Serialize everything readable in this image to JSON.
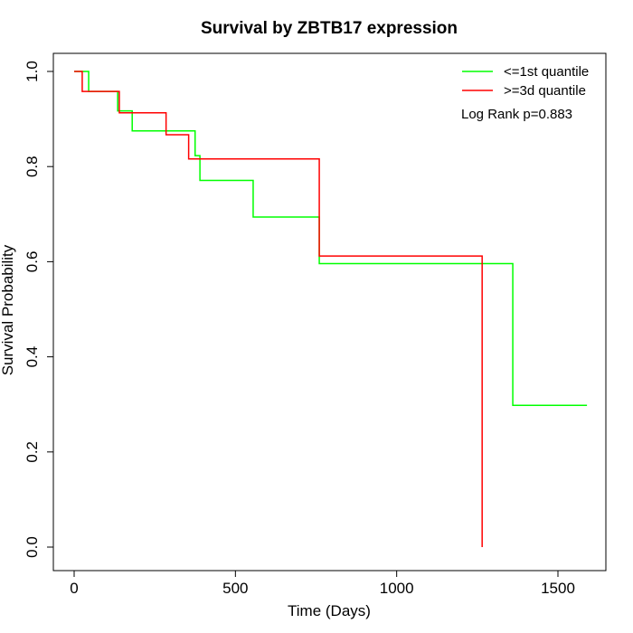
{
  "chart_data": {
    "type": "line",
    "title": "Survival by ZBTB17 expression",
    "xlabel": "Time (Days)",
    "ylabel": "Survival Probability",
    "xlim": [
      0,
      1650
    ],
    "ylim": [
      0,
      1
    ],
    "x_ticks": [
      0,
      500,
      1000,
      1500
    ],
    "y_ticks": [
      0.0,
      0.2,
      0.4,
      0.6,
      0.8,
      1.0
    ],
    "x_tick_labels": [
      "0",
      "500",
      "1000",
      "1500"
    ],
    "y_tick_labels": [
      "0.0",
      "0.2",
      "0.4",
      "0.6",
      "0.8",
      "1.0"
    ],
    "legend_position": "top-right",
    "annotation": "Log Rank p=0.883",
    "series": [
      {
        "name": "<=1st quantile",
        "color": "#00ff00",
        "step": true,
        "points": [
          [
            0,
            1.0
          ],
          [
            45,
            1.0
          ],
          [
            45,
            0.958
          ],
          [
            135,
            0.958
          ],
          [
            135,
            0.917
          ],
          [
            180,
            0.917
          ],
          [
            180,
            0.875
          ],
          [
            375,
            0.875
          ],
          [
            375,
            0.823
          ],
          [
            390,
            0.823
          ],
          [
            390,
            0.771
          ],
          [
            555,
            0.771
          ],
          [
            555,
            0.694
          ],
          [
            760,
            0.694
          ],
          [
            760,
            0.596
          ],
          [
            1360,
            0.596
          ],
          [
            1360,
            0.298
          ],
          [
            1590,
            0.298
          ]
        ]
      },
      {
        "name": ">=3d quantile",
        "color": "#ff0000",
        "step": true,
        "points": [
          [
            0,
            1.0
          ],
          [
            25,
            1.0
          ],
          [
            25,
            0.958
          ],
          [
            140,
            0.958
          ],
          [
            140,
            0.913
          ],
          [
            285,
            0.913
          ],
          [
            285,
            0.867
          ],
          [
            355,
            0.867
          ],
          [
            355,
            0.816
          ],
          [
            760,
            0.816
          ],
          [
            760,
            0.612
          ],
          [
            1265,
            0.612
          ],
          [
            1265,
            0.0
          ]
        ]
      }
    ]
  }
}
